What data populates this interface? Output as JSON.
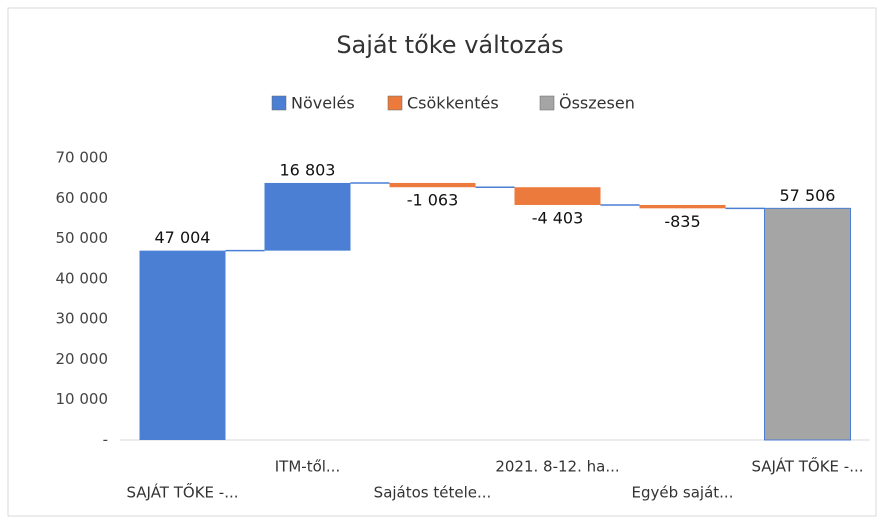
{
  "chart_data": {
    "type": "waterfall",
    "title": "Saját tőke változás",
    "categories": [
      "SAJÁT TŐKE -...",
      "ITM-től...",
      "Sajátos tétele...",
      "2021. 8-12. ha...",
      "Egyéb saját...",
      "SAJÁT TŐKE -..."
    ],
    "values": [
      47004,
      16803,
      -1063,
      -4403,
      -835,
      57506
    ],
    "value_labels": [
      "47 004",
      "16 803",
      "-1 063",
      "-4 403",
      "-835",
      "57 506"
    ],
    "totals": [
      5
    ],
    "series": [
      {
        "name": "Növelés",
        "color": "#4a7fd4"
      },
      {
        "name": "Csökkentés",
        "color": "#ec7a3c"
      },
      {
        "name": "Összesen",
        "color": "#a5a5a5"
      }
    ],
    "ylim": [
      0,
      70000
    ],
    "yticks": [
      {
        "value": 0,
        "label": "-"
      },
      {
        "value": 10000,
        "label": "10 000"
      },
      {
        "value": 20000,
        "label": "20 000"
      },
      {
        "value": 30000,
        "label": "30 000"
      },
      {
        "value": 40000,
        "label": "40 000"
      },
      {
        "value": 50000,
        "label": "50 000"
      },
      {
        "value": 60000,
        "label": "60 000"
      },
      {
        "value": 70000,
        "label": "70 000"
      }
    ]
  }
}
